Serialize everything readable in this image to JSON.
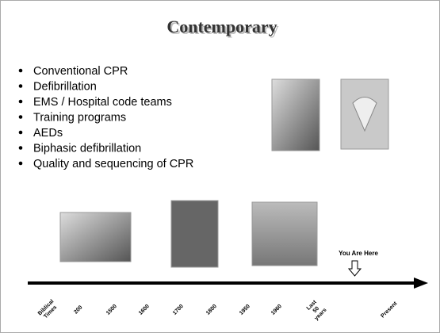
{
  "header": {
    "title": "Contemporary"
  },
  "bullets": [
    "Conventional CPR",
    "Defibrillation",
    "EMS / Hospital code teams",
    "Training programs",
    "AEDs",
    "Biphasic defibrillation",
    "Quality and sequencing of CPR"
  ],
  "marker": "You Are Here",
  "timeline": {
    "labels": [
      [
        "Biblical",
        "Times"
      ],
      [
        "200"
      ],
      [
        "1500"
      ],
      [
        "1600"
      ],
      [
        "1700"
      ],
      [
        "1800"
      ],
      [
        "1950"
      ],
      [
        "1960"
      ],
      [
        "Last",
        "50",
        "years"
      ],
      [
        "Present"
      ]
    ]
  }
}
